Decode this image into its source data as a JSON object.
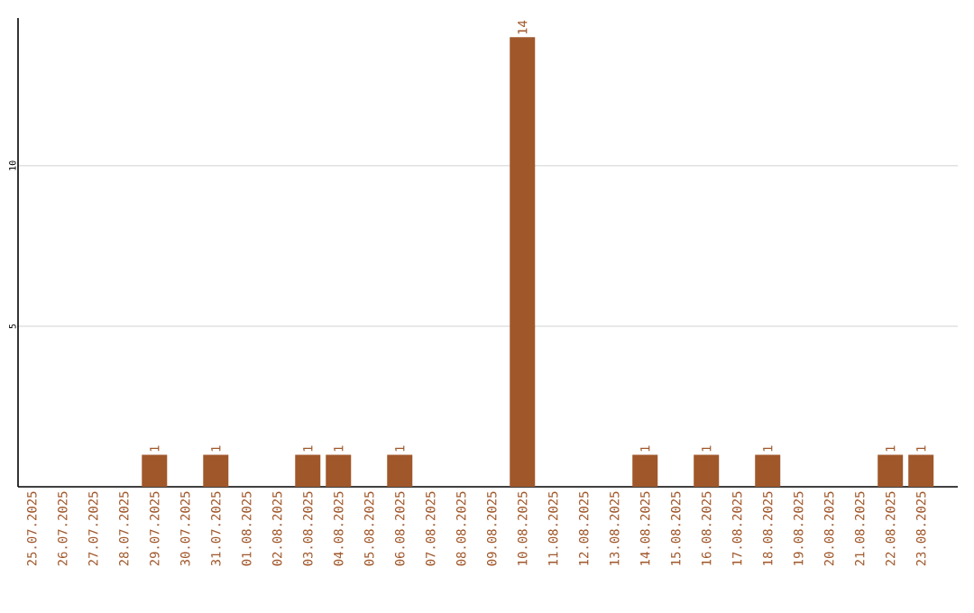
{
  "chart_data": {
    "type": "bar",
    "categories": [
      "25.07.2025",
      "26.07.2025",
      "27.07.2025",
      "28.07.2025",
      "29.07.2025",
      "30.07.2025",
      "31.07.2025",
      "01.08.2025",
      "02.08.2025",
      "03.08.2025",
      "04.08.2025",
      "05.08.2025",
      "06.08.2025",
      "07.08.2025",
      "08.08.2025",
      "09.08.2025",
      "10.08.2025",
      "11.08.2025",
      "12.08.2025",
      "13.08.2025",
      "14.08.2025",
      "15.08.2025",
      "16.08.2025",
      "17.08.2025",
      "18.08.2025",
      "19.08.2025",
      "20.08.2025",
      "21.08.2025",
      "22.08.2025",
      "23.08.2025"
    ],
    "values": [
      0,
      0,
      0,
      0,
      1,
      0,
      1,
      0,
      0,
      1,
      1,
      0,
      1,
      0,
      0,
      0,
      14,
      0,
      0,
      0,
      1,
      0,
      1,
      0,
      1,
      0,
      0,
      0,
      1,
      1
    ],
    "value_labels": [
      null,
      null,
      null,
      null,
      "1",
      null,
      "1",
      null,
      null,
      "1",
      "1",
      null,
      "1",
      null,
      null,
      null,
      "14",
      null,
      null,
      null,
      "1",
      null,
      "1",
      null,
      "1",
      null,
      null,
      null,
      "1",
      "1"
    ],
    "color": "#a0572a",
    "ylim": [
      0,
      14.6
    ],
    "yticks": [
      5,
      10
    ],
    "grid": "y"
  }
}
